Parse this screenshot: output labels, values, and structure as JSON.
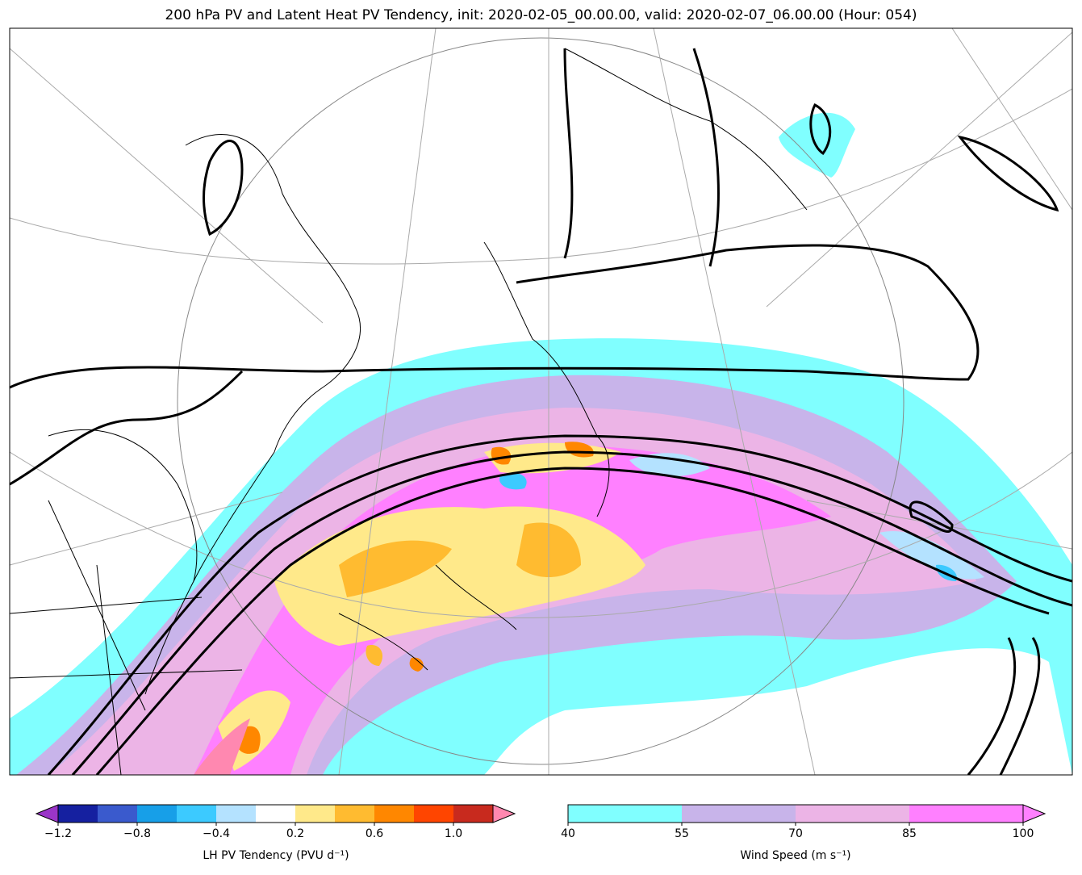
{
  "title": "200 hPa PV and Latent Heat PV Tendency, init: 2020-02-05_00.00.00, valid: 2020-02-07_06.00.00 (Hour: 054)",
  "colorbars": {
    "lh_pv": {
      "label": "LH PV Tendency (PVU d⁻¹)",
      "levels": [
        -1.2,
        -1.0,
        -0.8,
        -0.6,
        -0.4,
        -0.2,
        0.2,
        0.4,
        0.6,
        0.8,
        1.0,
        1.2
      ],
      "colors": [
        "#1520a0",
        "#3a5acd",
        "#179fe8",
        "#3ccaff",
        "#b4e2ff",
        "#ffffff",
        "#ffe98a",
        "#ffbb30",
        "#ff8700",
        "#ff4500",
        "#c82a1e"
      ],
      "under_color": "#9a35c8",
      "over_color": "#ff88b0",
      "tick_labels": [
        "−1.2",
        "−0.8",
        "−0.4",
        "0.2",
        "0.6",
        "1.0"
      ]
    },
    "wind": {
      "label": "Wind Speed (m s⁻¹)",
      "levels": [
        40,
        55,
        70,
        85,
        100
      ],
      "colors": [
        "#80ffff",
        "#c8b4ea",
        "#ecb4e6",
        "#ff80ff"
      ],
      "over_color": "#ff80ff",
      "tick_labels": [
        "40",
        "55",
        "70",
        "85",
        "100"
      ]
    }
  }
}
